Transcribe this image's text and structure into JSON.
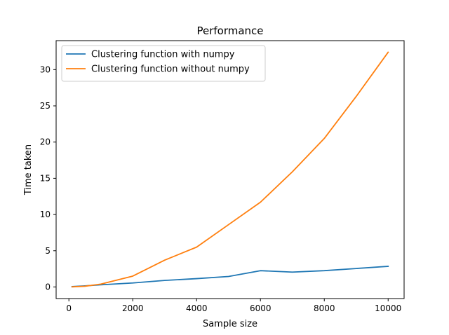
{
  "chart_data": {
    "type": "line",
    "title": "Performance",
    "xlabel": "Sample size",
    "ylabel": "Time taken",
    "xlim": [
      -400,
      10500
    ],
    "ylim": [
      -1.6,
      34.0
    ],
    "xticks": [
      0,
      2000,
      4000,
      6000,
      8000,
      10000
    ],
    "yticks": [
      0,
      5,
      10,
      15,
      20,
      25,
      30
    ],
    "grid": false,
    "legend_position": "top-left",
    "series": [
      {
        "name": "Clustering function with numpy",
        "color": "#1f77b4",
        "x": [
          100,
          500,
          1000,
          2000,
          3000,
          4000,
          5000,
          6000,
          7000,
          8000,
          9000,
          10000
        ],
        "y": [
          0.05,
          0.15,
          0.3,
          0.55,
          0.9,
          1.15,
          1.45,
          2.25,
          2.05,
          2.25,
          2.55,
          2.85
        ]
      },
      {
        "name": "Clustering function without numpy",
        "color": "#ff7f0e",
        "x": [
          100,
          500,
          1000,
          2000,
          3000,
          4000,
          5000,
          6000,
          7000,
          8000,
          9000,
          10000
        ],
        "y": [
          0.02,
          0.1,
          0.4,
          1.5,
          3.7,
          5.5,
          8.6,
          11.7,
          15.9,
          20.5,
          26.3,
          32.4
        ]
      }
    ]
  }
}
